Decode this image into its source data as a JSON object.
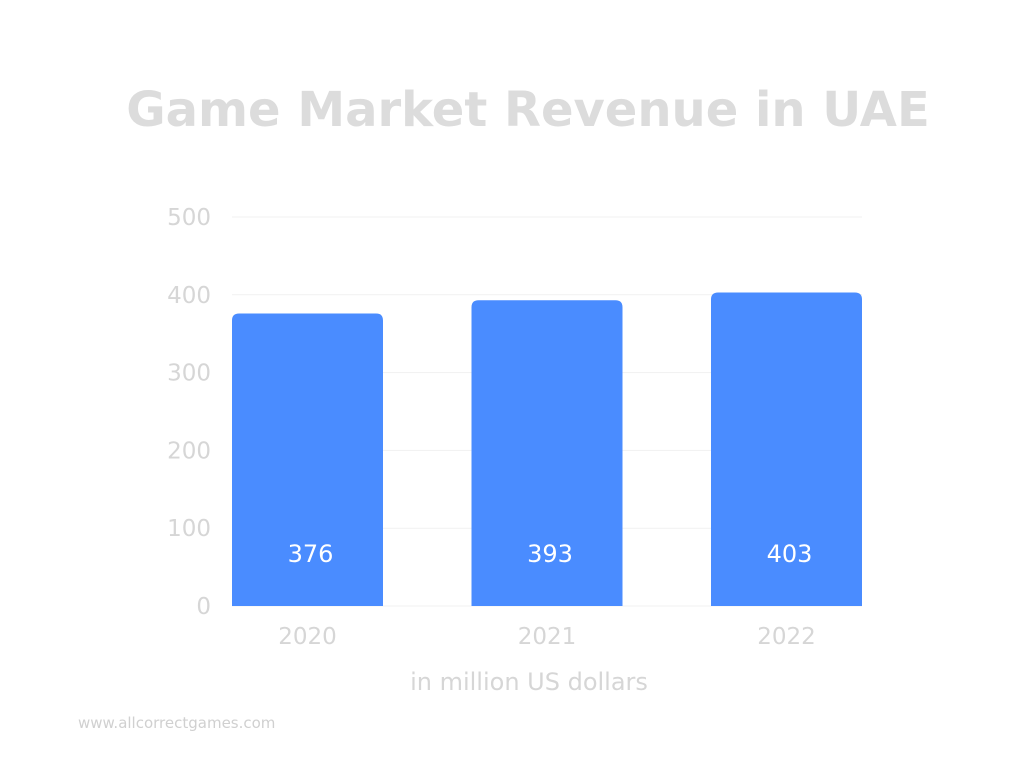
{
  "chart_data": {
    "type": "bar",
    "title": "Game Market Revenue in UAE",
    "xlabel": "in million US dollars",
    "ylabel": "",
    "categories": [
      "2020",
      "2021",
      "2022"
    ],
    "values": [
      376,
      393,
      403
    ],
    "data_labels": [
      "376",
      "393",
      "403"
    ],
    "yticks": [
      "0",
      "100",
      "200",
      "300",
      "400",
      "500"
    ],
    "ylim": [
      0,
      500
    ],
    "grid": true,
    "legend": "none",
    "colors": {
      "bar": "#4a8cff",
      "text": "#d6d6d6",
      "title": "#dcdcdc",
      "value_label": "#ffffff"
    }
  },
  "footer": {
    "source": "www.allcorrectgames.com"
  }
}
